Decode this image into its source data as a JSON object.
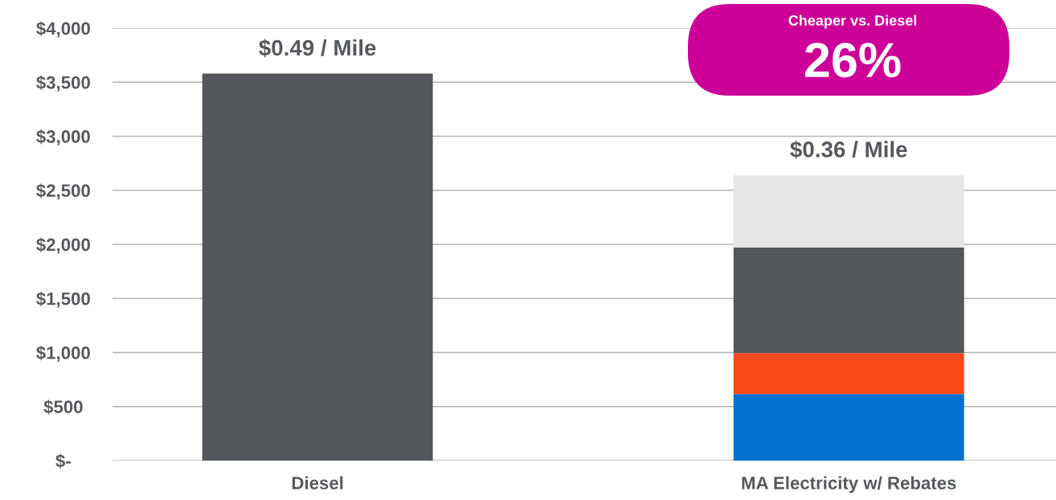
{
  "chart_data": {
    "type": "bar",
    "stacked": true,
    "categories": [
      "Diesel",
      "MA Electricity w/ Rebates"
    ],
    "series": [
      {
        "color": "#0071ce",
        "values": [
          null,
          615
        ]
      },
      {
        "color": "#f8481a",
        "values": [
          null,
          380
        ]
      },
      {
        "color": "#53565b",
        "values": [
          3580,
          975
        ]
      },
      {
        "color": "#e5e6e8",
        "values": [
          null,
          670
        ]
      }
    ],
    "ylim": [
      0,
      4000
    ],
    "yticks": [
      {
        "value": 0,
        "label": "$-"
      },
      {
        "value": 500,
        "label": "$500"
      },
      {
        "value": 1000,
        "label": "$1,000"
      },
      {
        "value": 1500,
        "label": "$1,500"
      },
      {
        "value": 2000,
        "label": "$2,000"
      },
      {
        "value": 2500,
        "label": "$2,500"
      },
      {
        "value": 3000,
        "label": "$3,000"
      },
      {
        "value": 3500,
        "label": "$3,500"
      },
      {
        "value": 4000,
        "label": "$4,000"
      }
    ],
    "grid": "y",
    "annotations": [
      {
        "text": "$0.49 / Mile",
        "x": "Diesel",
        "y": 3580
      },
      {
        "text": "$0.36 / Mile",
        "x": "MA Electricity w/ Rebates",
        "y": 2640
      },
      "Cheaper vs. Diesel",
      "26%"
    ]
  }
}
